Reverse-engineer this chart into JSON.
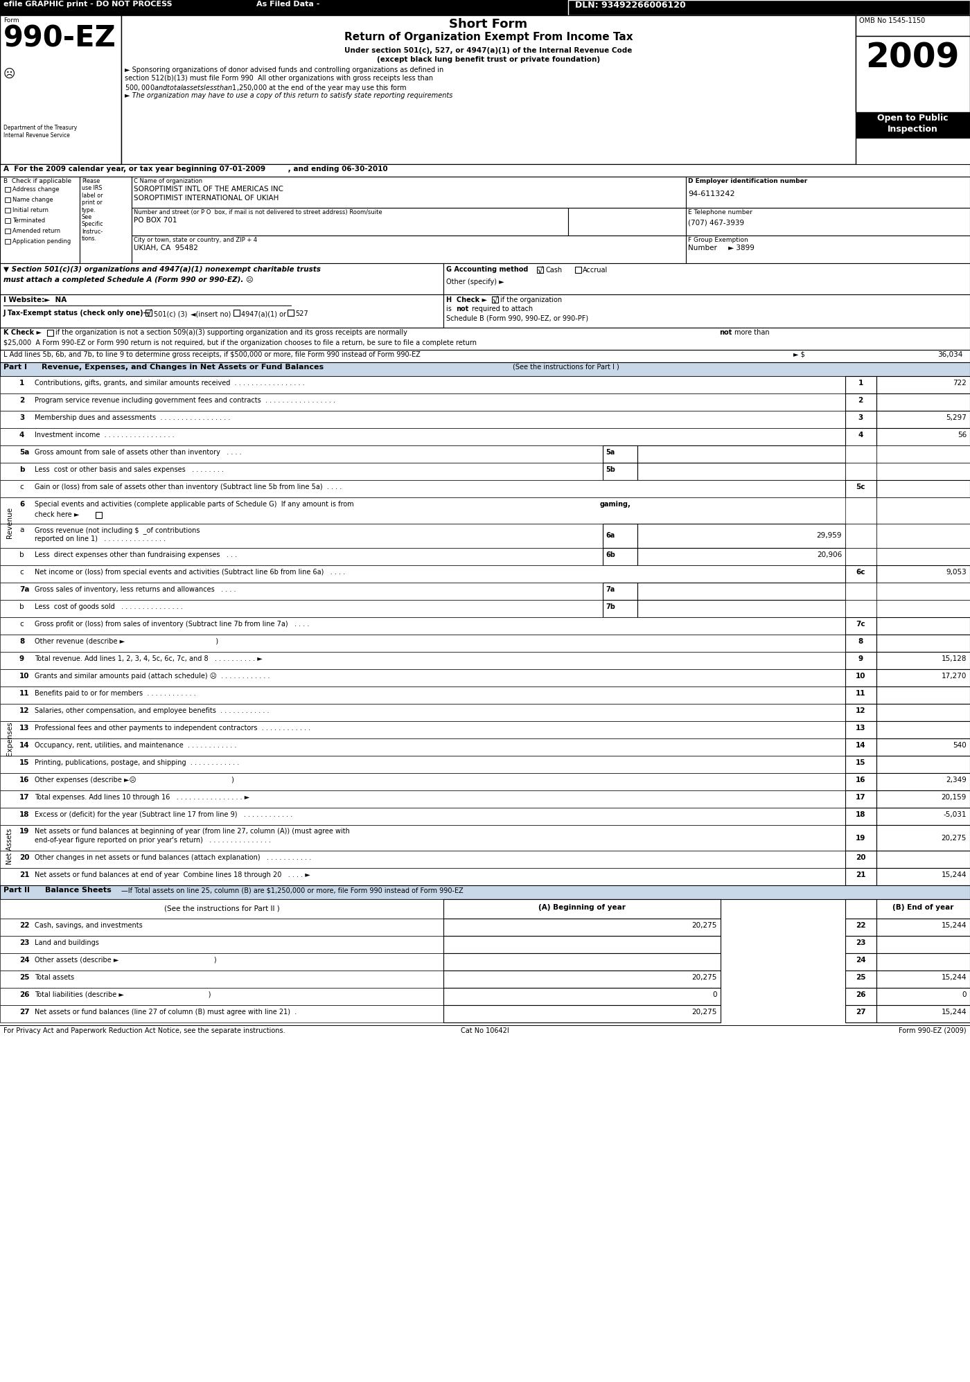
{
  "title_top": "efile GRAPHIC print - DO NOT PROCESS",
  "as_filed": "As Filed Data -",
  "dln": "DLN: 93492266006120",
  "form_title": "Short Form",
  "form_subtitle": "Return of Organization Exempt From Income Tax",
  "form_under1": "Under section 501(c), 527, or 4947(a)(1) of the Internal Revenue Code",
  "form_under2": "(except black lung benefit trust or private foundation)",
  "sponsor_text": "► Sponsoring organizations of donor advised funds and controlling organizations as defined in",
  "sponsor_text2": "section 512(b)(13) must file Form 990  All other organizations with gross receipts less than",
  "sponsor_text3": "$500,000 and total assets less than $1,250,000 at the end of the year may use this form",
  "italic_text": "► The organization may have to use a copy of this return to satisfy state reporting requirements",
  "form_number": "990-EZ",
  "form_label": "Form",
  "year": "2009",
  "omb": "OMB No 1545-1150",
  "open_public": "Open to Public",
  "inspection": "Inspection",
  "dept_treasury": "Department of the Treasury",
  "irs": "Internal Revenue Service",
  "section_A": "A  For the 2009 calendar year, or tax year beginning 07-01-2009         , and ending 06-30-2010",
  "org_name_label": "C Name of organization",
  "org_name1": "SOROPTIMIST INTL OF THE AMERICAS INC",
  "org_name2": "SOROPTIMIST INTERNATIONAL OF UKIAH",
  "ein_label": "D Employer identification number",
  "ein": "94-6113242",
  "address_label": "Number and street (or P O  box, if mail is not delivered to street address) Room/suite",
  "address": "PO BOX 701",
  "phone_label": "E Telephone number",
  "phone": "(707) 467-3939",
  "city_label": "City or town, state or country, and ZIP + 4",
  "city": "UKIAH, CA  95482",
  "group_label": "F Group Exemption",
  "group_number": "Number     ► 3899",
  "section_501_text": "▼ Section 501(c)(3) organizations and 4947(a)(1) nonexempt charitable trusts",
  "section_501_text2": "must attach a completed Schedule A (Form 990 or 990-EZ). ☹",
  "accounting_label": "G Accounting method",
  "cash_label": "Cash",
  "accrual_label": "Accrual",
  "other_specify": "Other (specify) ►",
  "website_label": "I Website:►",
  "website": "NA",
  "tax_exempt_label": "J Tax-Exempt status",
  "tax_exempt_check": "(check only one)—",
  "tax_501c3": "501(c) (3)",
  "insert_no": "◄(insert no)",
  "tax_4947": "4947(a)(1) or",
  "tax_527": "527",
  "K_line1": "K Check ►     if the organization is not a section 509(a)(3) supporting organization and its gross receipts are normally not more than",
  "K_line2": "$25,000  A Form 990-EZ or Form 990 return is not required, but if the organization chooses to file a return, be sure to file a complete return",
  "L_text": "L Add lines 5b, 6b, and 7b, to line 9 to determine gross receipts, if $500,000 or more, file Form 990 instead of Form 990-EZ",
  "L_amount": "36,034",
  "part1_title": "Part I",
  "part1_heading": "Revenue, Expenses, and Changes in Net Assets or Fund Balances",
  "part1_subheading": "(See the instructions for Part I )",
  "line1_val": "722",
  "line2_val": "",
  "line3_val": "5,297",
  "line4_val": "56",
  "line6a_val": "29,959",
  "line6b_val": "20,906",
  "line6c_val": "9,053",
  "line9_val": "15,128",
  "line10_val": "17,270",
  "line11_val": "",
  "line12_val": "",
  "line13_val": "",
  "line14_val": "540",
  "line15_val": "",
  "line16_val": "2,349",
  "line17_val": "20,159",
  "line18_val": "-5,031",
  "line19_val": "20,275",
  "line20_val": "",
  "line21_val": "15,244",
  "part2_title": "Part II",
  "part2_heading": "Balance Sheets",
  "part2_subheading": "If Total assets on line 25, column (B) are $1,250,000 or more, file Form 990 instead of Form 990-EZ",
  "part2_see": "(See the instructions for Part II )",
  "col_A": "(A) Beginning of year",
  "col_B": "(B) End of year",
  "line22_A": "20,275",
  "line22_B": "15,244",
  "line23_A": "",
  "line23_B": "",
  "line24_A": "",
  "line24_B": "",
  "line25_A": "20,275",
  "line25_B": "15,244",
  "line26_A": "0",
  "line26_B": "0",
  "line27_A": "20,275",
  "line27_B": "15,244",
  "footer_privacy": "For Privacy Act and Paperwork Reduction Act Notice, see the separate instructions.",
  "footer_cat": "Cat No 10642I",
  "footer_form": "Form 990-EZ (2009)",
  "bg_color": "#ffffff"
}
